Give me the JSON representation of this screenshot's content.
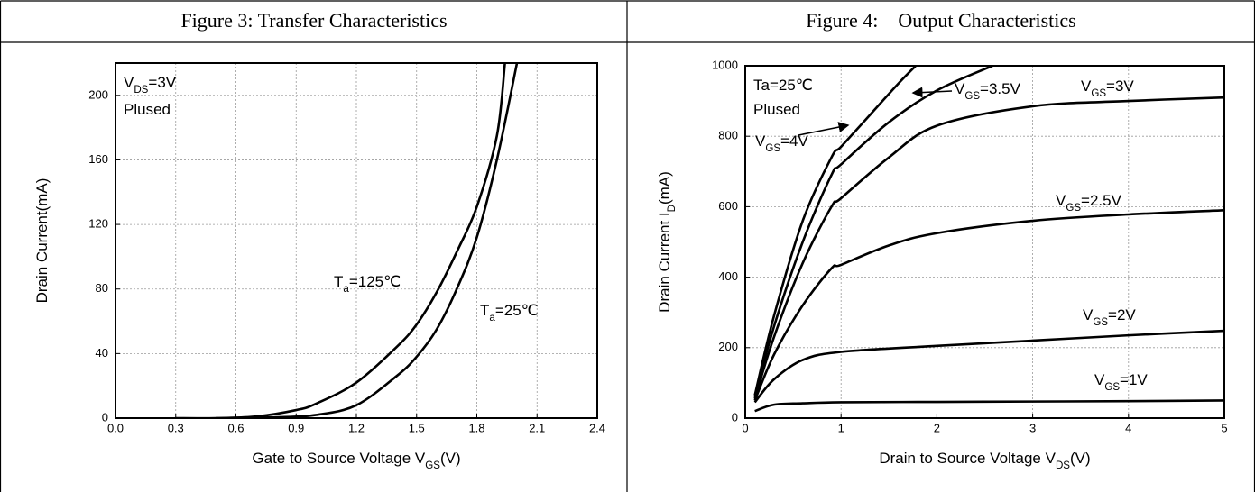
{
  "chart_data": [
    {
      "type": "line",
      "title": "Figure 3: Transfer Characteristics",
      "x_label": {
        "base": "Gate to Source Voltage V",
        "sub": "GS",
        "tail": "(V)"
      },
      "y_label": "Drain Current(mA)",
      "xlim": [
        0,
        2.4
      ],
      "ylim": [
        0,
        220
      ],
      "xticks": [
        {
          "value": 0,
          "label": "0.0"
        },
        0.3,
        0.6,
        0.9,
        1.2,
        1.5,
        1.8,
        2.1,
        2.4
      ],
      "yticks": [
        0,
        40,
        80,
        120,
        160,
        200
      ],
      "grid": true,
      "annotations": [
        {
          "base": "V",
          "sub": "DS",
          "tail": "=3V"
        },
        "Plused"
      ],
      "series": [
        {
          "name": {
            "base": "T",
            "sub": "a",
            "tail": "=125℃"
          },
          "color": "#000000",
          "x": [
            0.3,
            0.5,
            0.7,
            0.9,
            1.0,
            1.2,
            1.4,
            1.5,
            1.6,
            1.7,
            1.8,
            1.9,
            1.94
          ],
          "values": [
            0,
            0,
            1,
            5,
            9,
            22,
            44,
            58,
            78,
            103,
            131,
            175,
            220
          ]
        },
        {
          "name": {
            "base": "T",
            "sub": "a",
            "tail": "=25℃"
          },
          "color": "#000000",
          "x": [
            0.5,
            0.8,
            1.0,
            1.2,
            1.4,
            1.5,
            1.6,
            1.7,
            1.8,
            1.9,
            2.0
          ],
          "values": [
            0,
            0.5,
            2,
            8,
            26,
            38,
            55,
            80,
            112,
            160,
            220
          ]
        }
      ]
    },
    {
      "type": "line",
      "title": "Figure 4:    Output Characteristics",
      "x_label": {
        "base": "Drain to Source Voltage V",
        "sub": "DS",
        "tail": "(V)"
      },
      "y_label": {
        "base": "Drain Current I",
        "sub": "D",
        "tail": "(mA)"
      },
      "xlim": [
        0,
        5
      ],
      "ylim": [
        0,
        1000
      ],
      "xticks": [
        0,
        1,
        2,
        3,
        4,
        5
      ],
      "yticks": [
        0,
        200,
        400,
        600,
        800,
        1000
      ],
      "grid": true,
      "annotations": [
        "Ta=25℃",
        "Plused"
      ],
      "series": [
        {
          "name": {
            "base": "V",
            "sub": "GS",
            "tail": "=1V"
          },
          "color": "#000000",
          "x": [
            0.1,
            0.3,
            0.6,
            1,
            2,
            3,
            4,
            5
          ],
          "values": [
            20,
            38,
            42,
            45,
            46,
            47,
            48,
            50
          ]
        },
        {
          "name": {
            "base": "V",
            "sub": "GS",
            "tail": "=2V"
          },
          "color": "#000000",
          "x": [
            0.1,
            0.3,
            0.6,
            1,
            2,
            3,
            4,
            5
          ],
          "values": [
            45,
            110,
            165,
            188,
            205,
            220,
            235,
            248
          ]
        },
        {
          "name": {
            "base": "V",
            "sub": "GS",
            "tail": "=2.5V"
          },
          "color": "#000000",
          "x": [
            0.1,
            0.3,
            0.6,
            0.9,
            1,
            1.5,
            2,
            3,
            4,
            5
          ],
          "values": [
            50,
            180,
            320,
            425,
            435,
            490,
            525,
            560,
            578,
            590
          ]
        },
        {
          "name": {
            "base": "V",
            "sub": "GS",
            "tail": "=3V"
          },
          "color": "#000000",
          "x": [
            0.1,
            0.3,
            0.6,
            0.9,
            1,
            1.5,
            2,
            3,
            4,
            5
          ],
          "values": [
            55,
            230,
            440,
            600,
            624,
            740,
            830,
            885,
            900,
            910
          ]
        },
        {
          "name": {
            "base": "V",
            "sub": "GS",
            "tail": "=3.5V"
          },
          "color": "#000000",
          "x": [
            0.1,
            0.3,
            0.6,
            0.9,
            1,
            1.5,
            2,
            2.58
          ],
          "values": [
            60,
            260,
            500,
            690,
            720,
            840,
            930,
            1000
          ]
        },
        {
          "name": {
            "base": "V",
            "sub": "GS",
            "tail": "=4V"
          },
          "color": "#000000",
          "x": [
            0.1,
            0.3,
            0.6,
            0.9,
            1,
            1.3,
            1.6,
            1.78
          ],
          "values": [
            65,
            290,
            560,
            740,
            770,
            860,
            950,
            1000
          ]
        }
      ]
    }
  ]
}
